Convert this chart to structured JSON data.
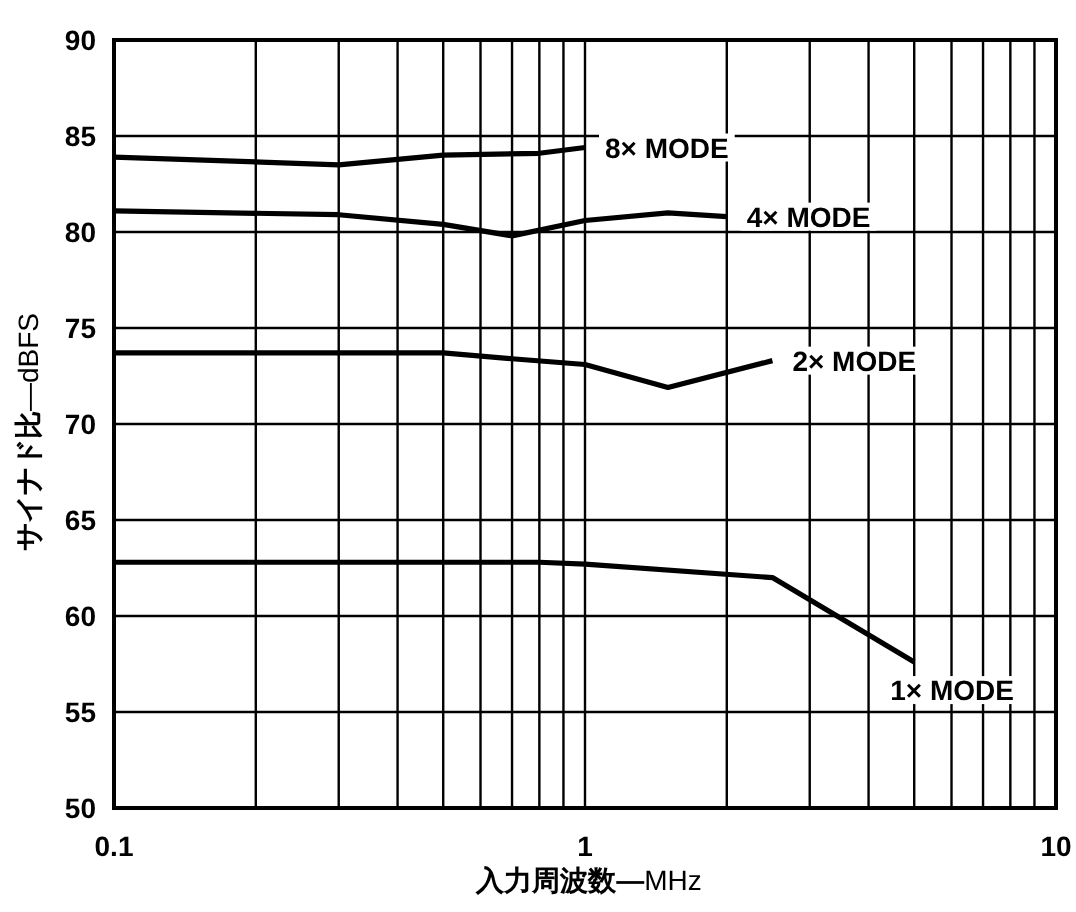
{
  "chart_data": {
    "type": "line",
    "xlabel": "**入力周波数—**MHz",
    "ylabel": "**サイナド比**—dBFS",
    "log": "x",
    "xlim": [
      0.1,
      10
    ],
    "ylim": [
      50,
      90
    ],
    "xticks": [
      0.1,
      {
        "value": 0.2,
        "label": null
      },
      {
        "value": 0.3,
        "label": null
      },
      {
        "value": 0.4,
        "label": null
      },
      {
        "value": 0.5,
        "label": null
      },
      {
        "value": 0.6,
        "label": null
      },
      {
        "value": 0.7,
        "label": null
      },
      {
        "value": 0.8,
        "label": null
      },
      {
        "value": 0.9,
        "label": null
      },
      1,
      {
        "value": 2,
        "label": null
      },
      {
        "value": 3,
        "label": null
      },
      {
        "value": 4,
        "label": null
      },
      {
        "value": 5,
        "label": null
      },
      {
        "value": 6,
        "label": null
      },
      {
        "value": 7,
        "label": null
      },
      {
        "value": 8,
        "label": null
      },
      {
        "value": 9,
        "label": null
      },
      10
    ],
    "yticks": [
      50,
      55,
      60,
      65,
      70,
      75,
      80,
      85,
      90
    ],
    "grid": true,
    "legend": false,
    "line_style": "solid",
    "series": [
      {
        "name": "8× MODE",
        "color": "#000000",
        "x": [
          0.1,
          0.3,
          0.5,
          0.8,
          1
        ],
        "values": [
          83.9,
          83.5,
          84.0,
          84.1,
          84.4
        ]
      },
      {
        "name": "4× MODE",
        "color": "#000000",
        "x": [
          0.1,
          0.3,
          0.5,
          0.7,
          1,
          1.5,
          2
        ],
        "values": [
          81.1,
          80.9,
          80.4,
          79.8,
          80.6,
          81.0,
          80.8
        ]
      },
      {
        "name": "2× MODE",
        "color": "#000000",
        "x": [
          0.1,
          0.5,
          0.7,
          1,
          1.5,
          2.5
        ],
        "values": [
          73.7,
          73.7,
          73.4,
          73.1,
          71.9,
          73.3
        ]
      },
      {
        "name": "1× MODE",
        "color": "#000000",
        "x": [
          0.1,
          0.8,
          1,
          2.5,
          5
        ],
        "values": [
          62.8,
          62.8,
          62.7,
          62.0,
          57.6
        ]
      }
    ]
  }
}
